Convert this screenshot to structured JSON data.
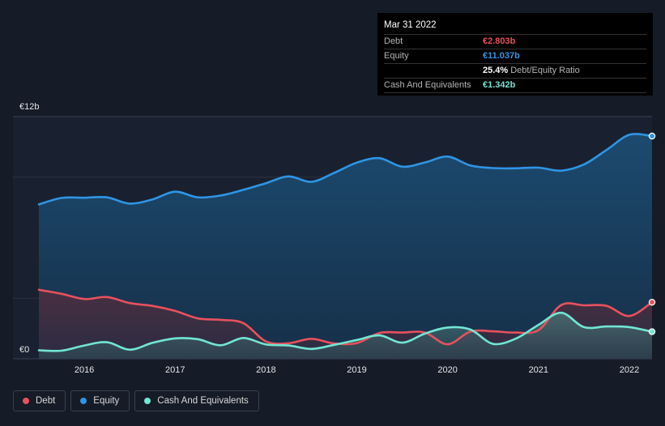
{
  "chart_data": {
    "type": "area",
    "currency_unit": "€",
    "y_top_label": "€12b",
    "y_bottom_label": "€0",
    "ylim": [
      0,
      12
    ],
    "xlim": [
      2015.5,
      2022.25
    ],
    "x_ticks": [
      {
        "value": 2016,
        "label": "2016"
      },
      {
        "value": 2017,
        "label": "2017"
      },
      {
        "value": 2018,
        "label": "2018"
      },
      {
        "value": 2019,
        "label": "2019"
      },
      {
        "value": 2020,
        "label": "2020"
      },
      {
        "value": 2021,
        "label": "2021"
      },
      {
        "value": 2022,
        "label": "2022"
      }
    ],
    "series": [
      {
        "key": "equity",
        "name": "Equity",
        "color": "#2f95e4",
        "x": [
          2015.5,
          2015.75,
          2016.0,
          2016.25,
          2016.5,
          2016.75,
          2017.0,
          2017.25,
          2017.5,
          2017.75,
          2018.0,
          2018.25,
          2018.5,
          2018.75,
          2019.0,
          2019.25,
          2019.5,
          2019.75,
          2020.0,
          2020.25,
          2020.5,
          2020.75,
          2021.0,
          2021.25,
          2021.5,
          2021.75,
          2022.0,
          2022.25
        ],
        "values": [
          7.65,
          7.97,
          7.98,
          8.0,
          7.69,
          7.9,
          8.28,
          8.0,
          8.09,
          8.37,
          8.7,
          9.04,
          8.77,
          9.21,
          9.72,
          9.94,
          9.52,
          9.73,
          10.02,
          9.58,
          9.45,
          9.44,
          9.47,
          9.32,
          9.63,
          10.35,
          11.1,
          11.037
        ]
      },
      {
        "key": "debt",
        "name": "Debt",
        "color": "#e8515d",
        "x": [
          2015.5,
          2015.75,
          2016.0,
          2016.25,
          2016.5,
          2016.75,
          2017.0,
          2017.25,
          2017.5,
          2017.75,
          2018.0,
          2018.25,
          2018.5,
          2018.75,
          2019.0,
          2019.25,
          2019.5,
          2019.75,
          2020.0,
          2020.25,
          2020.5,
          2020.75,
          2021.0,
          2021.25,
          2021.5,
          2021.75,
          2022.0,
          2022.25
        ],
        "values": [
          3.42,
          3.22,
          2.96,
          3.06,
          2.76,
          2.62,
          2.37,
          2.0,
          1.93,
          1.77,
          0.86,
          0.77,
          0.99,
          0.76,
          0.78,
          1.28,
          1.3,
          1.3,
          0.72,
          1.35,
          1.36,
          1.3,
          1.42,
          2.66,
          2.65,
          2.62,
          2.12,
          2.803
        ]
      },
      {
        "key": "cash",
        "name": "Cash And Equivalents",
        "color": "#72e5d3",
        "x": [
          2015.5,
          2015.75,
          2016.0,
          2016.25,
          2016.5,
          2016.75,
          2017.0,
          2017.25,
          2017.5,
          2017.75,
          2018.0,
          2018.25,
          2018.5,
          2018.75,
          2019.0,
          2019.25,
          2019.5,
          2019.75,
          2020.0,
          2020.25,
          2020.5,
          2020.75,
          2021.0,
          2021.25,
          2021.5,
          2021.75,
          2022.0,
          2022.25
        ],
        "values": [
          0.42,
          0.4,
          0.66,
          0.82,
          0.45,
          0.79,
          1.01,
          0.97,
          0.67,
          1.03,
          0.71,
          0.66,
          0.49,
          0.69,
          0.93,
          1.16,
          0.8,
          1.25,
          1.55,
          1.45,
          0.74,
          1.0,
          1.68,
          2.28,
          1.57,
          1.6,
          1.57,
          1.342
        ]
      }
    ]
  },
  "tooltip": {
    "date": "Mar 31 2022",
    "rows": [
      {
        "label": "Debt",
        "value": "€2.803b",
        "color": "#e8515d",
        "suffix": ""
      },
      {
        "label": "Equity",
        "value": "€11.037b",
        "color": "#2f95e4",
        "suffix": ""
      },
      {
        "label": "",
        "value": "25.4%",
        "color": "#ffffff",
        "suffix": "Debt/Equity Ratio"
      },
      {
        "label": "Cash And Equivalents",
        "value": "€1.342b",
        "color": "#72e5d3",
        "suffix": ""
      }
    ]
  },
  "legend": [
    {
      "key": "debt",
      "label": "Debt",
      "color": "#e8515d"
    },
    {
      "key": "equity",
      "label": "Equity",
      "color": "#2f95e4"
    },
    {
      "key": "cash",
      "label": "Cash And Equivalents",
      "color": "#72e5d3"
    }
  ]
}
